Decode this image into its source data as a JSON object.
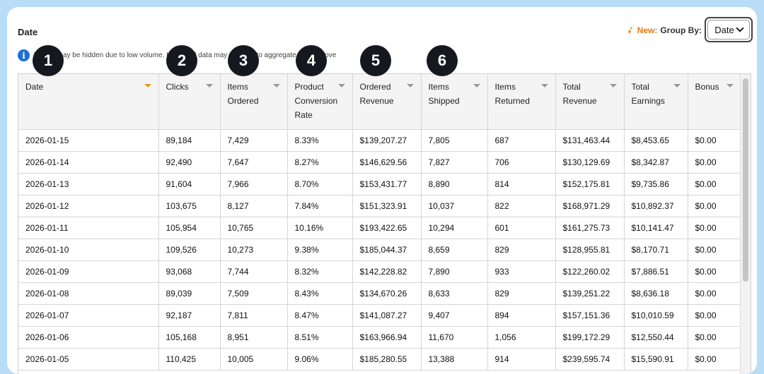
{
  "header": {
    "title": "Date",
    "new_label": "New:",
    "group_by_label": "Group By:",
    "group_by_value": "Date",
    "rocket_icon": "rocket-icon",
    "info_icon": "info-icon",
    "info_text": "Values may be hidden due to low volume. Individual data may not sum to aggregate totals above"
  },
  "badges": [
    "1",
    "2",
    "3",
    "4",
    "5",
    "6"
  ],
  "table": {
    "columns": [
      {
        "label": "Date",
        "sorted": true
      },
      {
        "label": "Clicks",
        "sorted": false
      },
      {
        "label": "Items Ordered",
        "sorted": false
      },
      {
        "label": "Product Conversion Rate",
        "sorted": false
      },
      {
        "label": "Ordered Revenue",
        "sorted": false
      },
      {
        "label": "Items Shipped",
        "sorted": false
      },
      {
        "label": "Items Returned",
        "sorted": false
      },
      {
        "label": "Total Revenue",
        "sorted": false
      },
      {
        "label": "Total Earnings",
        "sorted": false
      },
      {
        "label": "Bonus",
        "sorted": false
      }
    ],
    "rows": [
      [
        "2026-01-15",
        "89,184",
        "7,429",
        "8.33%",
        "$139,207.27",
        "7,805",
        "687",
        "$131,463.44",
        "$8,453.65",
        "$0.00"
      ],
      [
        "2026-01-14",
        "92,490",
        "7,647",
        "8.27%",
        "$146,629.56",
        "7,827",
        "706",
        "$130,129.69",
        "$8,342.87",
        "$0.00"
      ],
      [
        "2026-01-13",
        "91,604",
        "7,966",
        "8.70%",
        "$153,431.77",
        "8,890",
        "814",
        "$152,175.81",
        "$9,735.86",
        "$0.00"
      ],
      [
        "2026-01-12",
        "103,675",
        "8,127",
        "7.84%",
        "$151,323.91",
        "10,037",
        "822",
        "$168,971.29",
        "$10,892.37",
        "$0.00"
      ],
      [
        "2026-01-11",
        "105,954",
        "10,765",
        "10.16%",
        "$193,422.65",
        "10,294",
        "601",
        "$161,275.73",
        "$10,141.47",
        "$0.00"
      ],
      [
        "2026-01-10",
        "109,526",
        "10,273",
        "9.38%",
        "$185,044.37",
        "8,659",
        "829",
        "$128,955.81",
        "$8,170.71",
        "$0.00"
      ],
      [
        "2026-01-09",
        "93,068",
        "7,744",
        "8.32%",
        "$142,228.82",
        "7,890",
        "933",
        "$122,260.02",
        "$7,886.51",
        "$0.00"
      ],
      [
        "2026-01-08",
        "89,039",
        "7,509",
        "8.43%",
        "$134,670.26",
        "8,633",
        "829",
        "$139,251.22",
        "$8,636.18",
        "$0.00"
      ],
      [
        "2026-01-07",
        "92,187",
        "7,811",
        "8.47%",
        "$141,087.27",
        "9,407",
        "894",
        "$157,151.36",
        "$10,010.59",
        "$0.00"
      ],
      [
        "2026-01-06",
        "105,168",
        "8,951",
        "8.51%",
        "$163,966.94",
        "11,670",
        "1,056",
        "$199,172.29",
        "$12,550.44",
        "$0.00"
      ],
      [
        "2026-01-05",
        "110,425",
        "10,005",
        "9.06%",
        "$185,280.55",
        "13,388",
        "914",
        "$239,595.74",
        "$15,590.91",
        "$0.00"
      ]
    ]
  },
  "colors": {
    "background": "#b9dcf7",
    "accent": "#e47911",
    "badge": "#15191f",
    "info": "#1f6fd1",
    "sort_active": "#e59b16"
  }
}
